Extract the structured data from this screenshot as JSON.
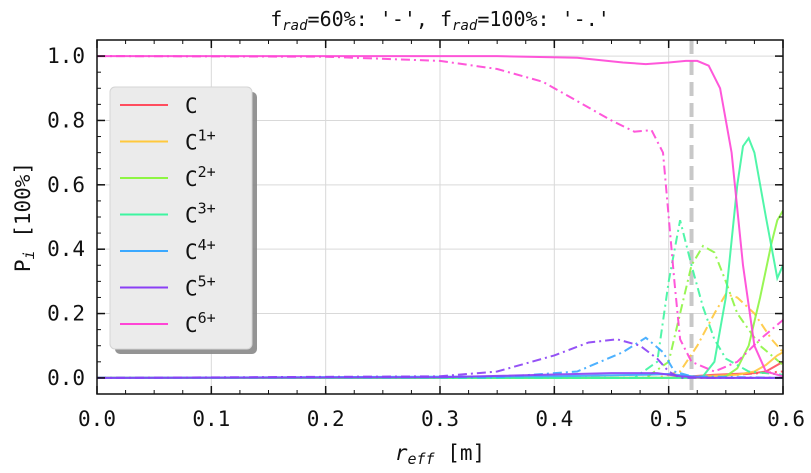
{
  "chart_data": {
    "type": "line",
    "title_parts": {
      "f": "f",
      "sub": "rad",
      "part1": "=60%: '-', ",
      "part2": "=100%: '-.'"
    },
    "xlabel_parts": {
      "r": "r",
      "sub": "eff",
      "rest": " [m]"
    },
    "ylabel_parts": {
      "p": "P",
      "sub": "i",
      "rest": " [100%]"
    },
    "xlim": [
      0.0,
      0.6
    ],
    "ylim": [
      -0.05,
      1.05
    ],
    "xticks": [
      "0.0",
      "0.1",
      "0.2",
      "0.3",
      "0.4",
      "0.5",
      "0.6"
    ],
    "xtick_values": [
      0.0,
      0.1,
      0.2,
      0.3,
      0.4,
      0.5,
      0.6
    ],
    "yticks": [
      "0.0",
      "0.2",
      "0.4",
      "0.6",
      "0.8",
      "1.0"
    ],
    "ytick_values": [
      0.0,
      0.2,
      0.4,
      0.6,
      0.8,
      1.0
    ],
    "grid": true,
    "legend_placement": "center-left",
    "vline": {
      "x": 0.52,
      "color": "#c8c8c8",
      "style": "dashed"
    },
    "series": [
      {
        "name": "C",
        "sup": "",
        "color": "#ff4d5e",
        "solid": [
          [
            0,
            0
          ],
          [
            0.5,
            0
          ],
          [
            0.54,
            0.01
          ],
          [
            0.575,
            0.015
          ],
          [
            0.585,
            0.02
          ],
          [
            0.595,
            0.04
          ],
          [
            0.6,
            0.05
          ]
        ],
        "dashdot": [
          [
            0,
            0
          ],
          [
            0.5,
            0
          ],
          [
            0.53,
            0.005
          ],
          [
            0.56,
            0.01
          ],
          [
            0.58,
            0.015
          ],
          [
            0.6,
            0.02
          ]
        ]
      },
      {
        "name": "C",
        "sup": "1+",
        "color": "#ffc83d",
        "solid": [
          [
            0,
            0
          ],
          [
            0.5,
            0
          ],
          [
            0.53,
            0.005
          ],
          [
            0.56,
            0.01
          ],
          [
            0.575,
            0.02
          ],
          [
            0.585,
            0.04
          ],
          [
            0.595,
            0.07
          ],
          [
            0.6,
            0.08
          ]
        ],
        "dashdot": [
          [
            0,
            0
          ],
          [
            0.49,
            0
          ],
          [
            0.51,
            0.02
          ],
          [
            0.525,
            0.1
          ],
          [
            0.54,
            0.2
          ],
          [
            0.55,
            0.26
          ],
          [
            0.56,
            0.25
          ],
          [
            0.575,
            0.2
          ],
          [
            0.59,
            0.12
          ],
          [
            0.6,
            0.08
          ]
        ]
      },
      {
        "name": "C",
        "sup": "2+",
        "color": "#8df542",
        "solid": [
          [
            0,
            0
          ],
          [
            0.54,
            0
          ],
          [
            0.55,
            0.005
          ],
          [
            0.56,
            0.03
          ],
          [
            0.57,
            0.1
          ],
          [
            0.58,
            0.25
          ],
          [
            0.59,
            0.42
          ],
          [
            0.595,
            0.49
          ],
          [
            0.6,
            0.52
          ]
        ],
        "dashdot": [
          [
            0,
            0
          ],
          [
            0.48,
            0
          ],
          [
            0.5,
            0.05
          ],
          [
            0.51,
            0.2
          ],
          [
            0.52,
            0.35
          ],
          [
            0.53,
            0.41
          ],
          [
            0.54,
            0.39
          ],
          [
            0.55,
            0.3
          ],
          [
            0.56,
            0.2
          ],
          [
            0.58,
            0.1
          ],
          [
            0.6,
            0.04
          ]
        ]
      },
      {
        "name": "C",
        "sup": "3+",
        "color": "#3df5a0",
        "solid": [
          [
            0,
            0
          ],
          [
            0.52,
            0
          ],
          [
            0.53,
            0.005
          ],
          [
            0.54,
            0.05
          ],
          [
            0.55,
            0.25
          ],
          [
            0.56,
            0.6
          ],
          [
            0.565,
            0.72
          ],
          [
            0.57,
            0.745
          ],
          [
            0.575,
            0.7
          ],
          [
            0.585,
            0.5
          ],
          [
            0.595,
            0.31
          ],
          [
            0.6,
            0.35
          ]
        ],
        "dashdot": [
          [
            0,
            0
          ],
          [
            0.47,
            0
          ],
          [
            0.49,
            0.05
          ],
          [
            0.5,
            0.3
          ],
          [
            0.51,
            0.49
          ],
          [
            0.52,
            0.35
          ],
          [
            0.53,
            0.22
          ],
          [
            0.54,
            0.12
          ],
          [
            0.55,
            0.06
          ],
          [
            0.57,
            0.02
          ],
          [
            0.6,
            0.01
          ]
        ]
      },
      {
        "name": "C",
        "sup": "4+",
        "color": "#3aa8ff",
        "solid": [
          [
            0,
            0
          ],
          [
            0.4,
            0.005
          ],
          [
            0.48,
            0.01
          ],
          [
            0.5,
            0.012
          ],
          [
            0.52,
            0.005
          ],
          [
            0.54,
            0
          ],
          [
            0.6,
            0
          ]
        ],
        "dashdot": [
          [
            0,
            0
          ],
          [
            0.35,
            0.002
          ],
          [
            0.42,
            0.02
          ],
          [
            0.46,
            0.08
          ],
          [
            0.48,
            0.125
          ],
          [
            0.495,
            0.08
          ],
          [
            0.505,
            0.02
          ],
          [
            0.52,
            0.005
          ],
          [
            0.6,
            0
          ]
        ]
      },
      {
        "name": "C",
        "sup": "5+",
        "color": "#8a3ff5",
        "solid": [
          [
            0,
            0
          ],
          [
            0.3,
            0.002
          ],
          [
            0.45,
            0.015
          ],
          [
            0.49,
            0.015
          ],
          [
            0.51,
            0.005
          ],
          [
            0.53,
            0
          ],
          [
            0.6,
            0
          ]
        ],
        "dashdot": [
          [
            0,
            0
          ],
          [
            0.3,
            0.005
          ],
          [
            0.35,
            0.02
          ],
          [
            0.4,
            0.07
          ],
          [
            0.43,
            0.11
          ],
          [
            0.455,
            0.12
          ],
          [
            0.475,
            0.1
          ],
          [
            0.49,
            0.06
          ],
          [
            0.5,
            0.02
          ],
          [
            0.51,
            0
          ],
          [
            0.6,
            0
          ]
        ]
      },
      {
        "name": "C",
        "sup": "6+",
        "color": "#ff45d6",
        "solid": [
          [
            0,
            1.0
          ],
          [
            0.25,
            1.0
          ],
          [
            0.35,
            1.0
          ],
          [
            0.42,
            0.995
          ],
          [
            0.46,
            0.98
          ],
          [
            0.48,
            0.975
          ],
          [
            0.5,
            0.98
          ],
          [
            0.515,
            0.985
          ],
          [
            0.525,
            0.985
          ],
          [
            0.535,
            0.97
          ],
          [
            0.545,
            0.9
          ],
          [
            0.555,
            0.7
          ],
          [
            0.565,
            0.35
          ],
          [
            0.575,
            0.1
          ],
          [
            0.585,
            0.02
          ],
          [
            0.6,
            0.005
          ]
        ],
        "dashdot": [
          [
            0,
            1.0
          ],
          [
            0.2,
            0.998
          ],
          [
            0.3,
            0.985
          ],
          [
            0.35,
            0.96
          ],
          [
            0.39,
            0.92
          ],
          [
            0.42,
            0.86
          ],
          [
            0.45,
            0.8
          ],
          [
            0.47,
            0.765
          ],
          [
            0.485,
            0.77
          ],
          [
            0.495,
            0.7
          ],
          [
            0.5,
            0.5
          ],
          [
            0.505,
            0.3
          ],
          [
            0.51,
            0.12
          ],
          [
            0.52,
            0.05
          ],
          [
            0.54,
            0.02
          ],
          [
            0.56,
            0.05
          ],
          [
            0.58,
            0.12
          ],
          [
            0.6,
            0.18
          ]
        ]
      }
    ]
  }
}
